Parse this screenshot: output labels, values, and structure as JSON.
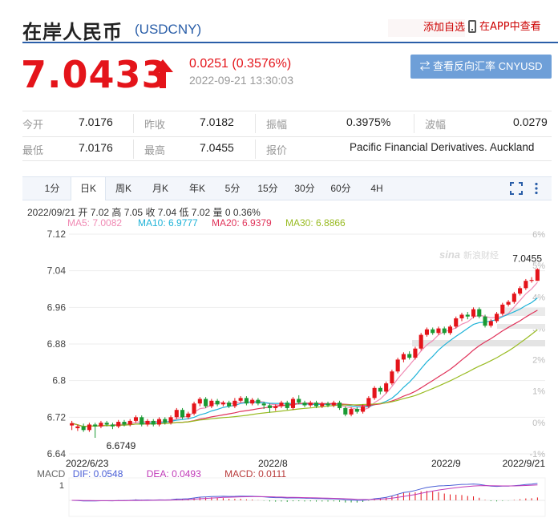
{
  "header": {
    "title": "在岸人民币",
    "symbol": "(USDCNY)",
    "fav_label": "添加自选",
    "app_label": "在APP中查看"
  },
  "quote": {
    "price": "7.0433",
    "change": "0.0251 (0.3576%)",
    "datetime": "2022-09-21 13:30:03",
    "reverse_btn": "⇄ 查看反向汇率 CNYUSD"
  },
  "stats": [
    {
      "label": "今开",
      "value": "7.0176"
    },
    {
      "label": "昨收",
      "value": "7.0182"
    },
    {
      "label": "振幅",
      "value": "0.3975%"
    },
    {
      "label": "波幅",
      "value": "0.0279"
    },
    {
      "label": "最低",
      "value": "7.0176"
    },
    {
      "label": "最高",
      "value": "7.0455"
    },
    {
      "label": "报价",
      "value": "Pacific Financial Derivatives. Auckland"
    }
  ],
  "tabs": [
    "1分",
    "日K",
    "周K",
    "月K",
    "年K",
    "5分",
    "15分",
    "30分",
    "60分",
    "4H"
  ],
  "active_tab": 1,
  "ohlc_line": "2022/09/21 开 7.02 高 7.05 收 7.04 低 7.02 量 0 0.36%",
  "ma": {
    "ma5": "MA5: 7.0082",
    "ma10": "MA10: 6.9777",
    "ma20": "MA20: 6.9379",
    "ma30": "MA30: 6.8866"
  },
  "macd": {
    "label": "MACD",
    "dif": "DIF: 0.0548",
    "dea": "DEA: 0.0493",
    "macd": "MACD: 0.0111"
  },
  "colors": {
    "up": "#e4141a",
    "down": "#1a9a33",
    "ma5": "#f08ab4",
    "ma10": "#1fb3d8",
    "ma20": "#e0335a",
    "ma30": "#99bb22",
    "accent": "#2a5ea8"
  },
  "chart_data": {
    "type": "candlestick",
    "y_ticks": [
      "7.12",
      "7.04",
      "6.96",
      "6.88",
      "6.8",
      "6.72",
      "6.64"
    ],
    "ylim": [
      6.64,
      7.12
    ],
    "pct_ticks": [
      "6%",
      "5%",
      "4%",
      "3%",
      "2%",
      "1%",
      "0%",
      "-1%"
    ],
    "x_ticks": [
      "2022/6/23",
      "2022/8",
      "2022/9",
      "2022/9/21"
    ],
    "annotations": {
      "high_label": "7.0455",
      "low_label": "6.6749"
    },
    "macd_axis_label": "1",
    "candles": [
      [
        6.702,
        6.707,
        6.692,
        6.712
      ],
      [
        6.696,
        6.7,
        6.69,
        6.704
      ],
      [
        6.7,
        6.692,
        6.688,
        6.706
      ],
      [
        6.692,
        6.704,
        6.688,
        6.708
      ],
      [
        6.704,
        6.7,
        6.675,
        6.708
      ],
      [
        6.7,
        6.708,
        6.696,
        6.712
      ],
      [
        6.708,
        6.704,
        6.7,
        6.712
      ],
      [
        6.704,
        6.7,
        6.694,
        6.708
      ],
      [
        6.7,
        6.71,
        6.696,
        6.714
      ],
      [
        6.71,
        6.704,
        6.7,
        6.714
      ],
      [
        6.704,
        6.712,
        6.7,
        6.716
      ],
      [
        6.712,
        6.72,
        6.708,
        6.724
      ],
      [
        6.72,
        6.704,
        6.7,
        6.724
      ],
      [
        6.704,
        6.712,
        6.7,
        6.716
      ],
      [
        6.712,
        6.704,
        6.7,
        6.716
      ],
      [
        6.704,
        6.716,
        6.7,
        6.72
      ],
      [
        6.716,
        6.708,
        6.704,
        6.72
      ],
      [
        6.708,
        6.72,
        6.704,
        6.724
      ],
      [
        6.72,
        6.736,
        6.716,
        6.74
      ],
      [
        6.736,
        6.72,
        6.716,
        6.74
      ],
      [
        6.72,
        6.728,
        6.716,
        6.732
      ],
      [
        6.728,
        6.75,
        6.724,
        6.754
      ],
      [
        6.75,
        6.76,
        6.744,
        6.764
      ],
      [
        6.76,
        6.744,
        6.74,
        6.764
      ],
      [
        6.744,
        6.756,
        6.74,
        6.76
      ],
      [
        6.756,
        6.748,
        6.744,
        6.76
      ],
      [
        6.748,
        6.752,
        6.744,
        6.756
      ],
      [
        6.752,
        6.744,
        6.74,
        6.756
      ],
      [
        6.744,
        6.756,
        6.74,
        6.762
      ],
      [
        6.756,
        6.762,
        6.752,
        6.766
      ],
      [
        6.762,
        6.75,
        6.746,
        6.766
      ],
      [
        6.75,
        6.758,
        6.746,
        6.762
      ],
      [
        6.758,
        6.75,
        6.746,
        6.762
      ],
      [
        6.75,
        6.746,
        6.738,
        6.754
      ],
      [
        6.746,
        6.74,
        6.73,
        6.75
      ],
      [
        6.74,
        6.744,
        6.734,
        6.748
      ],
      [
        6.744,
        6.752,
        6.74,
        6.756
      ],
      [
        6.752,
        6.74,
        6.736,
        6.756
      ],
      [
        6.74,
        6.76,
        6.736,
        6.764
      ],
      [
        6.76,
        6.752,
        6.748,
        6.768
      ],
      [
        6.752,
        6.746,
        6.742,
        6.756
      ],
      [
        6.746,
        6.752,
        6.742,
        6.756
      ],
      [
        6.752,
        6.744,
        6.74,
        6.756
      ],
      [
        6.744,
        6.75,
        6.74,
        6.754
      ],
      [
        6.75,
        6.746,
        6.742,
        6.754
      ],
      [
        6.746,
        6.752,
        6.742,
        6.756
      ],
      [
        6.752,
        6.74,
        6.736,
        6.756
      ],
      [
        6.74,
        6.726,
        6.722,
        6.744
      ],
      [
        6.726,
        6.738,
        6.722,
        6.742
      ],
      [
        6.738,
        6.732,
        6.728,
        6.742
      ],
      [
        6.732,
        6.744,
        6.728,
        6.748
      ],
      [
        6.744,
        6.762,
        6.74,
        6.766
      ],
      [
        6.762,
        6.784,
        6.758,
        6.788
      ],
      [
        6.784,
        6.776,
        6.77,
        6.788
      ],
      [
        6.776,
        6.794,
        6.772,
        6.798
      ],
      [
        6.794,
        6.82,
        6.79,
        6.824
      ],
      [
        6.82,
        6.846,
        6.816,
        6.85
      ],
      [
        6.846,
        6.858,
        6.84,
        6.862
      ],
      [
        6.858,
        6.85,
        6.846,
        6.864
      ],
      [
        6.85,
        6.87,
        6.846,
        6.874
      ],
      [
        6.87,
        6.9,
        6.866,
        6.904
      ],
      [
        6.9,
        6.912,
        6.896,
        6.916
      ],
      [
        6.912,
        6.904,
        6.9,
        6.916
      ],
      [
        6.904,
        6.914,
        6.9,
        6.918
      ],
      [
        6.914,
        6.904,
        6.9,
        6.918
      ],
      [
        6.904,
        6.918,
        6.9,
        6.922
      ],
      [
        6.918,
        6.936,
        6.914,
        6.94
      ],
      [
        6.936,
        6.944,
        6.93,
        6.948
      ],
      [
        6.944,
        6.94,
        6.934,
        6.95
      ],
      [
        6.94,
        6.956,
        6.936,
        6.96
      ],
      [
        6.956,
        6.94,
        6.936,
        6.96
      ],
      [
        6.94,
        6.92,
        6.916,
        6.944
      ],
      [
        6.92,
        6.93,
        6.916,
        6.934
      ],
      [
        6.93,
        6.946,
        6.926,
        6.95
      ],
      [
        6.946,
        6.966,
        6.942,
        6.97
      ],
      [
        6.966,
        6.972,
        6.962,
        6.976
      ],
      [
        6.972,
        6.99,
        6.968,
        6.994
      ],
      [
        6.99,
        7.002,
        6.986,
        7.006
      ],
      [
        7.002,
        7.018,
        6.998,
        7.022
      ],
      [
        7.018,
        7.02,
        7.014,
        7.026
      ],
      [
        7.018,
        7.0433,
        7.0176,
        7.0455
      ]
    ]
  }
}
